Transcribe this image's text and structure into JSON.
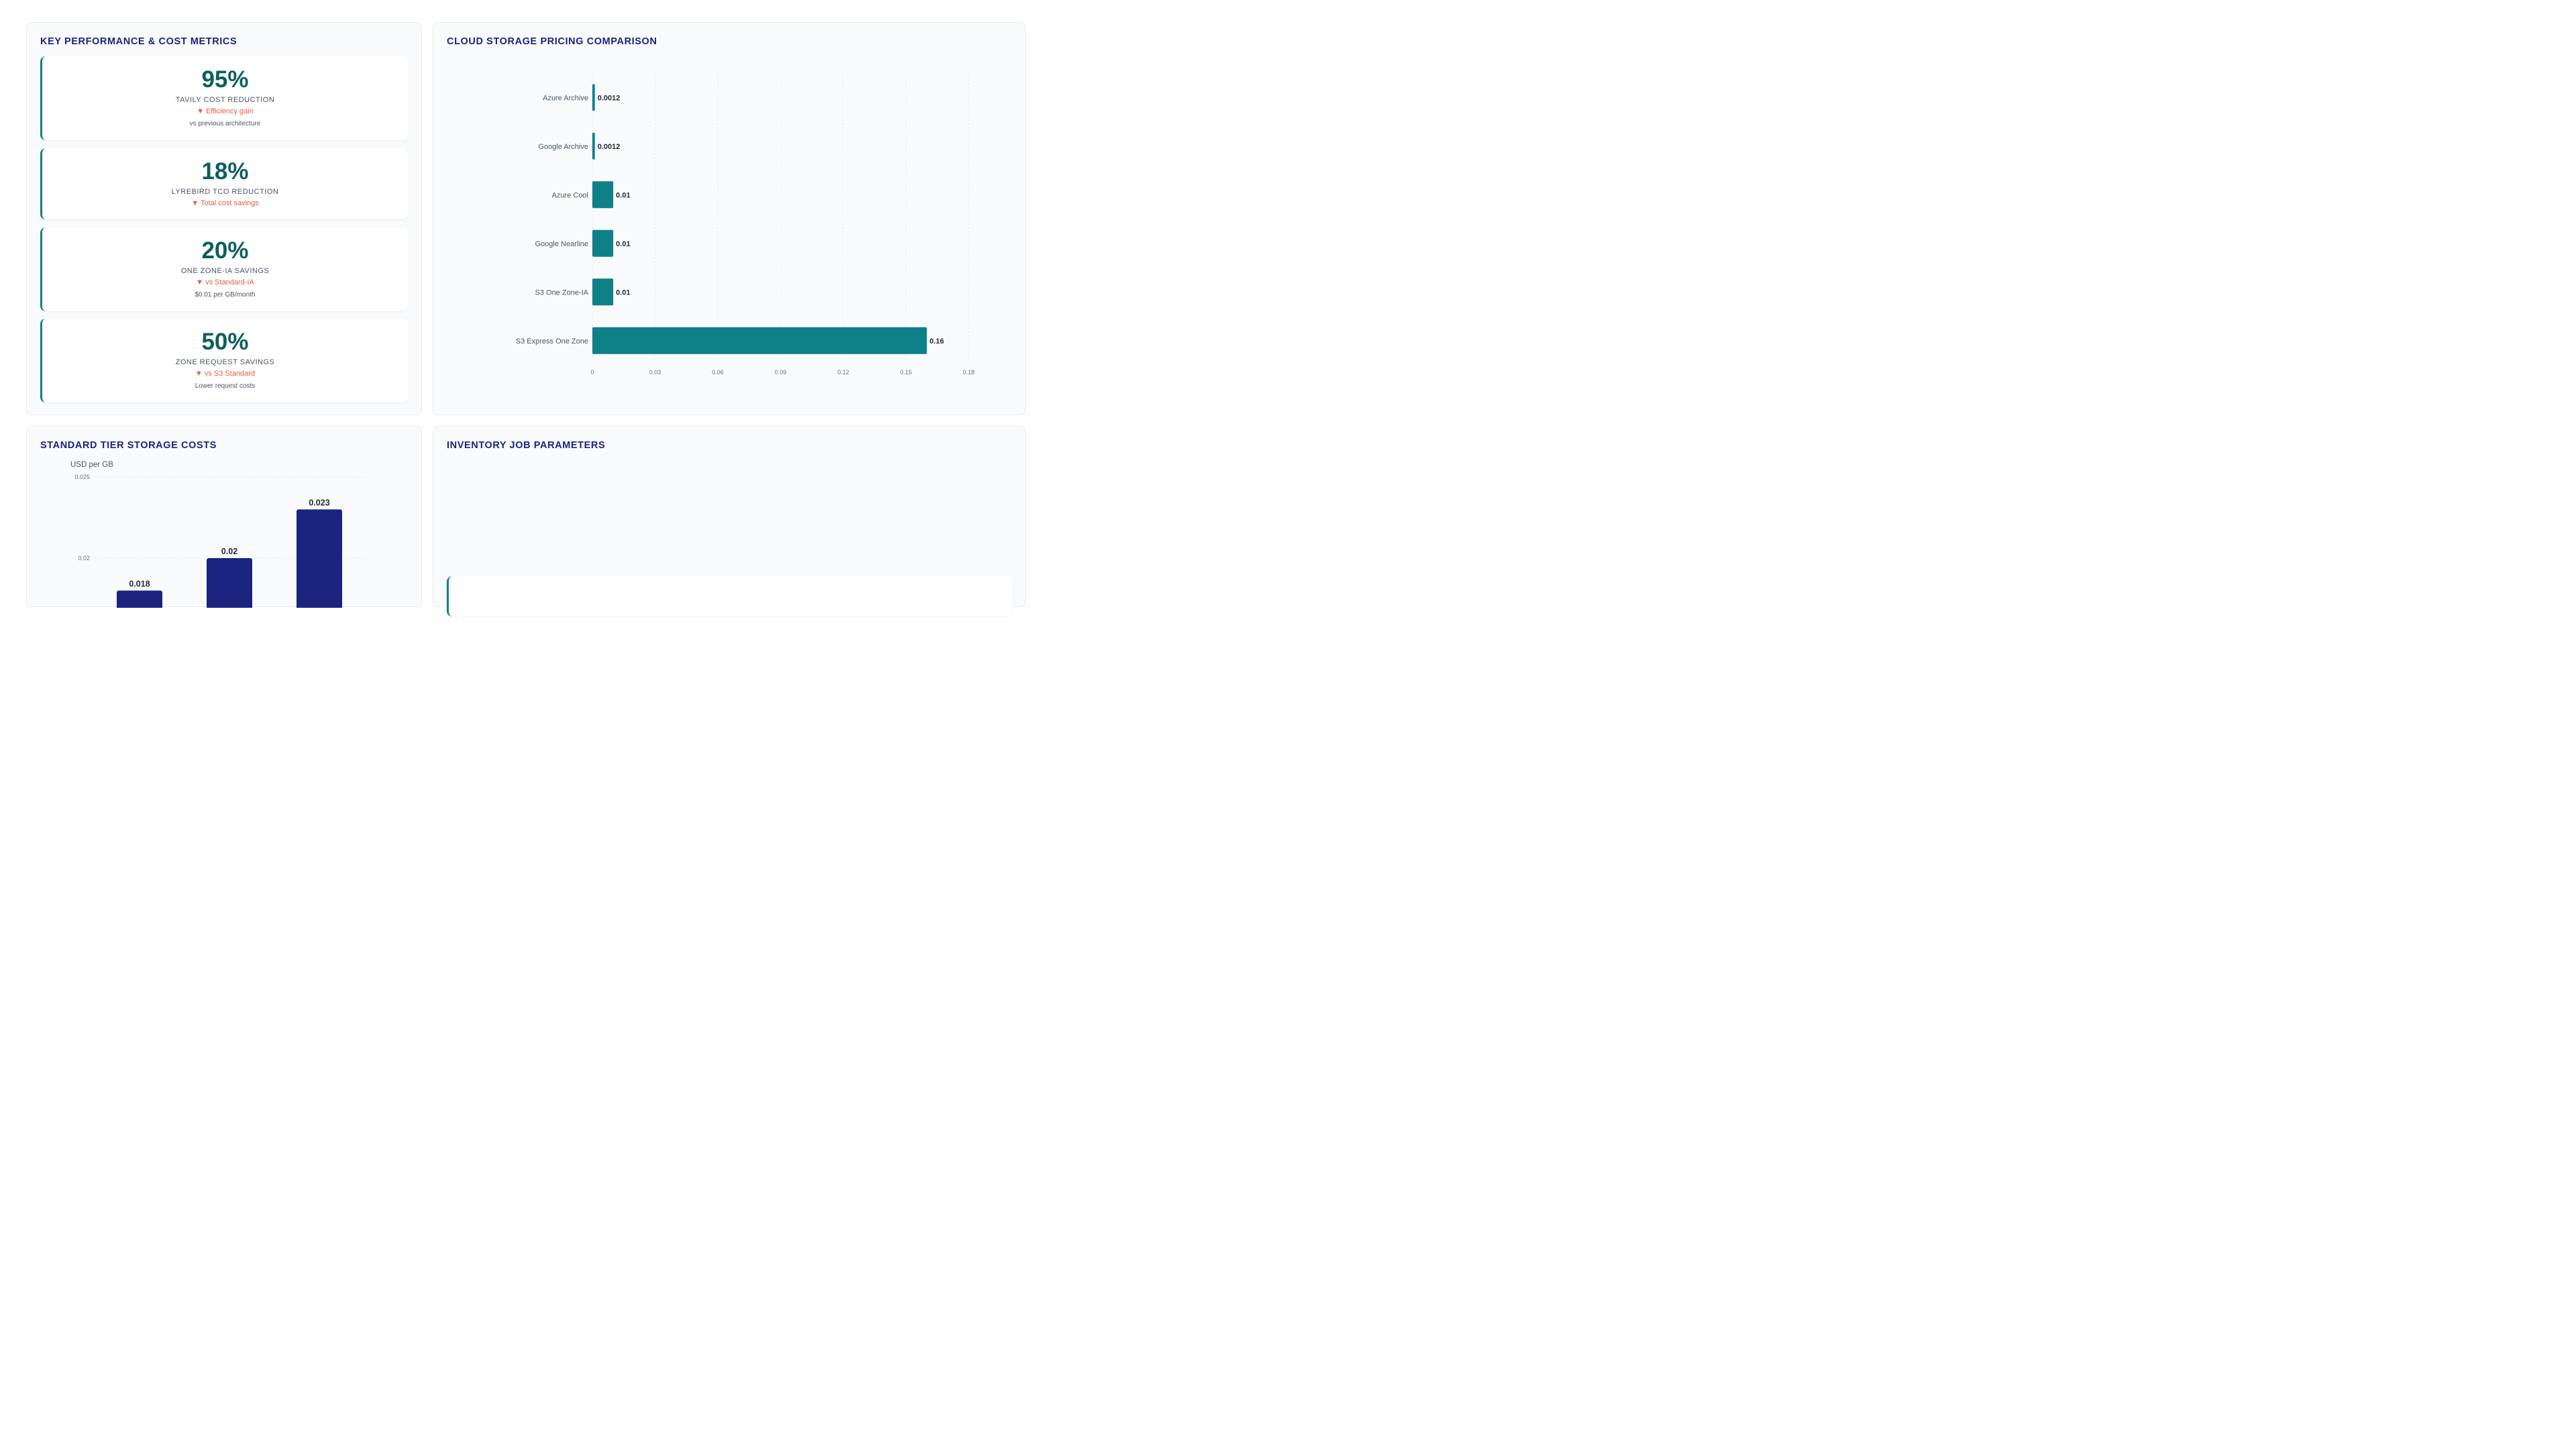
{
  "kpi_panel": {
    "title": "KEY PERFORMANCE & COST METRICS",
    "cards": [
      {
        "value": "95%",
        "label": "TAVILY COST REDUCTION",
        "delta": "▼ Efficiency gain",
        "note": "vs previous architecture"
      },
      {
        "value": "18%",
        "label": "LYREBIRD TCO REDUCTION",
        "delta": "▼ Total cost savings",
        "note": ""
      },
      {
        "value": "20%",
        "label": "ONE ZONE-IA SAVINGS",
        "delta": "▼ vs Standard-IA",
        "note": "$0.01 per GB/month"
      },
      {
        "value": "50%",
        "label": "ZONE REQUEST SAVINGS",
        "delta": "▼ vs S3 Standard",
        "note": "Lower request costs"
      }
    ]
  },
  "pricing_panel": {
    "title": "CLOUD STORAGE PRICING COMPARISON"
  },
  "standard_panel": {
    "title": "STANDARD TIER STORAGE COSTS"
  },
  "inventory_panel": {
    "title": "INVENTORY JOB PARAMETERS"
  },
  "colors": {
    "teal": "#0f8087",
    "navy": "#1a237e",
    "accent": "#e0603f"
  },
  "chart_data": [
    {
      "type": "bar",
      "orientation": "horizontal",
      "categories": [
        "Azure Archive",
        "Google Archive",
        "Azure Cool",
        "Google Nearline",
        "S3 One Zone-IA",
        "S3 Express One Zone"
      ],
      "values": [
        0.0012,
        0.0012,
        0.01,
        0.01,
        0.01,
        0.16
      ],
      "value_labels": [
        "0.0012",
        "0.0012",
        "0.01",
        "0.01",
        "0.01",
        "0.16"
      ],
      "xticks": [
        "0",
        "0.03",
        "0.06",
        "0.09",
        "0.12",
        "0.15",
        "0.18"
      ],
      "xlim": [
        0,
        0.18
      ],
      "color": "#0f8087",
      "grid": true
    },
    {
      "type": "bar",
      "orientation": "vertical",
      "ylabel": "USD per GB",
      "values": [
        0.018,
        0.02,
        0.023
      ],
      "value_labels": [
        "0.018",
        "0.02",
        "0.023"
      ],
      "yticks": [
        "0.02",
        "0.025"
      ],
      "color": "#1a237e",
      "grid": true
    }
  ]
}
